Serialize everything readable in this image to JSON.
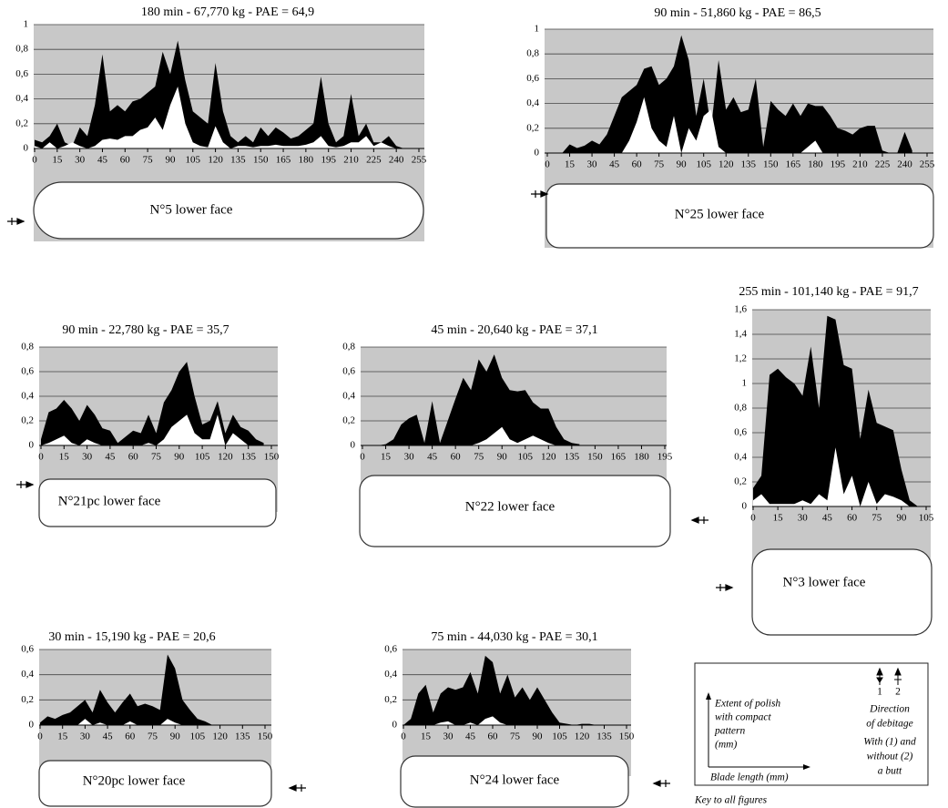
{
  "chart_data": [
    {
      "type": "area",
      "title": "180 min - 67,770 kg - PAE = 64,9",
      "blade_label": "N°5 lower face",
      "x": [
        0,
        5,
        10,
        15,
        20,
        25,
        30,
        35,
        40,
        45,
        50,
        55,
        60,
        65,
        70,
        75,
        80,
        85,
        90,
        95,
        100,
        105,
        110,
        115,
        120,
        125,
        130,
        135,
        140,
        145,
        150,
        155,
        160,
        165,
        170,
        175,
        180,
        185,
        190,
        195,
        200,
        205,
        210,
        215,
        220,
        225,
        230,
        235,
        240,
        245
      ],
      "series": [
        {
          "color": "#000000",
          "values": [
            0.07,
            0.05,
            0.1,
            0.2,
            0.05,
            0.02,
            0.17,
            0.1,
            0.35,
            0.76,
            0.3,
            0.35,
            0.3,
            0.38,
            0.4,
            0.45,
            0.5,
            0.78,
            0.6,
            0.87,
            0.55,
            0.3,
            0.25,
            0.2,
            0.69,
            0.3,
            0.1,
            0.05,
            0.1,
            0.05,
            0.17,
            0.1,
            0.17,
            0.13,
            0.08,
            0.1,
            0.15,
            0.2,
            0.58,
            0.2,
            0.05,
            0.1,
            0.44,
            0.1,
            0.2,
            0.05,
            0.05,
            0.1,
            0.02,
            0
          ]
        },
        {
          "color": "#ffffff",
          "values": [
            0.02,
            0,
            0.05,
            0,
            0.02,
            0.05,
            0.02,
            0,
            0.02,
            0.07,
            0.08,
            0.07,
            0.1,
            0.1,
            0.15,
            0.17,
            0.25,
            0.15,
            0.35,
            0.5,
            0.2,
            0.05,
            0.02,
            0.01,
            0.18,
            0.05,
            0,
            0.02,
            0.02,
            0.01,
            0.02,
            0.02,
            0.03,
            0.02,
            0.02,
            0.02,
            0.03,
            0.05,
            0.1,
            0.02,
            0.01,
            0.02,
            0.05,
            0.05,
            0.1,
            0.02,
            0.05,
            0.02,
            0,
            0
          ]
        }
      ],
      "xlim": [
        0,
        255
      ],
      "xticks": [
        0,
        15,
        30,
        45,
        60,
        75,
        90,
        105,
        120,
        135,
        150,
        165,
        180,
        195,
        210,
        225,
        240,
        255
      ],
      "ylim": [
        0,
        1
      ],
      "yticks": [
        0,
        {
          "value": 0.2,
          "label": "0,2"
        },
        {
          "value": 0.4,
          "label": "0,4"
        },
        {
          "value": 0.6,
          "label": "0,6"
        },
        {
          "value": 0.8,
          "label": "0,8"
        },
        1
      ],
      "grid": true
    },
    {
      "type": "area",
      "title": "90 min - 51,860 kg - PAE = 86,5",
      "blade_label": "N°25 lower face",
      "x": [
        0,
        5,
        10,
        15,
        20,
        25,
        30,
        35,
        40,
        45,
        50,
        55,
        60,
        65,
        70,
        75,
        80,
        85,
        90,
        95,
        100,
        105,
        110,
        115,
        120,
        125,
        130,
        135,
        140,
        145,
        150,
        155,
        160,
        165,
        170,
        175,
        180,
        185,
        190,
        195,
        200,
        205,
        210,
        215,
        220,
        225,
        230,
        235,
        240,
        245
      ],
      "series": [
        {
          "color": "#000000",
          "values": [
            0,
            0,
            0,
            0.07,
            0.04,
            0.06,
            0.1,
            0.07,
            0.15,
            0.3,
            0.45,
            0.5,
            0.55,
            0.68,
            0.7,
            0.55,
            0.6,
            0.7,
            0.95,
            0.75,
            0.3,
            0.6,
            0.2,
            0.75,
            0.35,
            0.45,
            0.33,
            0.35,
            0.6,
            0.05,
            0.42,
            0.35,
            0.3,
            0.4,
            0.3,
            0.4,
            0.38,
            0.38,
            0.3,
            0.2,
            0.18,
            0.15,
            0.2,
            0.22,
            0.22,
            0.02,
            0,
            0,
            0.17,
            0.02
          ]
        },
        {
          "color": "#ffffff",
          "values": [
            0,
            0,
            0,
            0,
            0,
            0,
            0,
            0,
            0,
            0,
            0,
            0.1,
            0.25,
            0.45,
            0.2,
            0.1,
            0.05,
            0.3,
            0,
            0.2,
            0.1,
            0.3,
            0.35,
            0.05,
            0,
            0,
            0,
            0,
            0,
            0,
            0,
            0,
            0,
            0,
            0,
            0.05,
            0.1,
            0,
            0,
            0,
            0,
            0,
            0,
            0,
            0,
            0,
            0,
            0,
            0,
            0
          ]
        }
      ],
      "xlim": [
        0,
        255
      ],
      "xticks": [
        0,
        15,
        30,
        45,
        60,
        75,
        90,
        105,
        120,
        135,
        150,
        165,
        180,
        195,
        210,
        225,
        240,
        255
      ],
      "ylim": [
        0,
        1
      ],
      "yticks": [
        0,
        {
          "value": 0.2,
          "label": "0,2"
        },
        {
          "value": 0.4,
          "label": "0,4"
        },
        {
          "value": 0.6,
          "label": "0,6"
        },
        {
          "value": 0.8,
          "label": "0,8"
        },
        1
      ],
      "grid": true
    },
    {
      "type": "area",
      "title": "90 min - 22,780 kg - PAE = 35,7",
      "blade_label": "N°21pc lower face",
      "x": [
        0,
        5,
        10,
        15,
        20,
        25,
        30,
        35,
        40,
        45,
        50,
        55,
        60,
        65,
        70,
        75,
        80,
        85,
        90,
        95,
        100,
        105,
        110,
        115,
        120,
        125,
        130,
        135,
        140,
        145
      ],
      "series": [
        {
          "color": "#000000",
          "values": [
            0.05,
            0.27,
            0.3,
            0.37,
            0.3,
            0.2,
            0.33,
            0.25,
            0.14,
            0.12,
            0.02,
            0.07,
            0.12,
            0.1,
            0.25,
            0.1,
            0.35,
            0.45,
            0.6,
            0.68,
            0.4,
            0.17,
            0.2,
            0.36,
            0.1,
            0.25,
            0.15,
            0.12,
            0.05,
            0.02
          ]
        },
        {
          "color": "#ffffff",
          "values": [
            0,
            0.02,
            0.05,
            0.08,
            0.02,
            0,
            0.05,
            0.02,
            0,
            0,
            0,
            0,
            0,
            0,
            0.02,
            0,
            0.05,
            0.15,
            0.2,
            0.25,
            0.1,
            0.05,
            0.05,
            0.25,
            0,
            0.1,
            0.05,
            0,
            0,
            0
          ]
        }
      ],
      "xlim": [
        0,
        150
      ],
      "xticks": [
        0,
        15,
        30,
        45,
        60,
        75,
        90,
        105,
        120,
        135,
        150
      ],
      "ylim": [
        0,
        0.8
      ],
      "yticks": [
        0,
        {
          "value": 0.2,
          "label": "0,2"
        },
        {
          "value": 0.4,
          "label": "0,4"
        },
        {
          "value": 0.6,
          "label": "0,6"
        },
        {
          "value": 0.8,
          "label": "0,8"
        }
      ],
      "grid": true
    },
    {
      "type": "area",
      "title": "45 min - 20,640 kg - PAE = 37,1",
      "blade_label": "N°22 lower face",
      "x": [
        0,
        5,
        10,
        15,
        20,
        25,
        30,
        35,
        40,
        45,
        50,
        55,
        60,
        65,
        70,
        75,
        80,
        85,
        90,
        95,
        100,
        105,
        110,
        115,
        120,
        125,
        130,
        135,
        140
      ],
      "series": [
        {
          "color": "#000000",
          "values": [
            0,
            0,
            0,
            0.01,
            0.05,
            0.17,
            0.22,
            0.25,
            0.02,
            0.36,
            0.02,
            0.2,
            0.38,
            0.55,
            0.45,
            0.7,
            0.6,
            0.74,
            0.55,
            0.45,
            0.44,
            0.45,
            0.35,
            0.3,
            0.3,
            0.15,
            0.05,
            0.02,
            0.01
          ]
        },
        {
          "color": "#ffffff",
          "values": [
            0,
            0,
            0,
            0,
            0,
            0,
            0,
            0,
            0,
            0,
            0,
            0,
            0,
            0,
            0,
            0.02,
            0.05,
            0.1,
            0.15,
            0.05,
            0.02,
            0.05,
            0.08,
            0.05,
            0.02,
            0,
            0,
            0,
            0
          ]
        }
      ],
      "xlim": [
        0,
        195
      ],
      "xticks": [
        0,
        15,
        30,
        45,
        60,
        75,
        90,
        105,
        120,
        135,
        150,
        165,
        180,
        195
      ],
      "ylim": [
        0,
        0.8
      ],
      "yticks": [
        0,
        {
          "value": 0.2,
          "label": "0,2"
        },
        {
          "value": 0.4,
          "label": "0,4"
        },
        {
          "value": 0.6,
          "label": "0,6"
        },
        {
          "value": 0.8,
          "label": "0,8"
        }
      ],
      "grid": true
    },
    {
      "type": "area",
      "title": "255 min - 101,140 kg - PAE = 91,7",
      "blade_label": "N°3 lower face",
      "x": [
        0,
        5,
        10,
        15,
        20,
        25,
        30,
        35,
        40,
        45,
        50,
        55,
        60,
        65,
        70,
        75,
        80,
        85,
        90,
        95,
        100
      ],
      "series": [
        {
          "color": "#000000",
          "values": [
            0.15,
            0.25,
            1.07,
            1.12,
            1.05,
            1.0,
            0.9,
            1.3,
            0.8,
            1.55,
            1.52,
            1.15,
            1.12,
            0.55,
            0.95,
            0.68,
            0.65,
            0.62,
            0.3,
            0.05,
            0
          ]
        },
        {
          "color": "#ffffff",
          "values": [
            0.05,
            0.1,
            0.02,
            0.02,
            0.02,
            0.02,
            0.05,
            0.02,
            0.1,
            0.05,
            0.48,
            0.1,
            0.25,
            0,
            0.2,
            0.02,
            0.1,
            0.08,
            0.05,
            0,
            0
          ]
        }
      ],
      "xlim": [
        0,
        105
      ],
      "xticks": [
        0,
        15,
        30,
        45,
        60,
        75,
        90,
        105
      ],
      "ylim": [
        0,
        1.6
      ],
      "yticks": [
        0,
        {
          "value": 0.2,
          "label": "0,2"
        },
        {
          "value": 0.4,
          "label": "0,4"
        },
        {
          "value": 0.6,
          "label": "0,6"
        },
        {
          "value": 0.8,
          "label": "0,8"
        },
        1,
        {
          "value": 1.2,
          "label": "1,2"
        },
        {
          "value": 1.4,
          "label": "1,4"
        },
        {
          "value": 1.6,
          "label": "1,6"
        }
      ],
      "grid": true
    },
    {
      "type": "area",
      "title": "30 min - 15,190 kg - PAE = 20,6",
      "blade_label": "N°20pc lower face",
      "x": [
        0,
        5,
        10,
        15,
        20,
        25,
        30,
        35,
        40,
        45,
        50,
        55,
        60,
        65,
        70,
        75,
        80,
        85,
        90,
        95,
        100,
        105,
        110,
        115
      ],
      "series": [
        {
          "color": "#000000",
          "values": [
            0.02,
            0.07,
            0.05,
            0.08,
            0.1,
            0.15,
            0.2,
            0.1,
            0.28,
            0.18,
            0.1,
            0.18,
            0.25,
            0.15,
            0.17,
            0.15,
            0.12,
            0.56,
            0.45,
            0.2,
            0.12,
            0.05,
            0.03,
            0
          ]
        },
        {
          "color": "#ffffff",
          "values": [
            0,
            0,
            0,
            0,
            0,
            0,
            0.05,
            0,
            0.02,
            0,
            0,
            0,
            0.03,
            0,
            0,
            0,
            0,
            0.05,
            0.02,
            0,
            0,
            0,
            0,
            0
          ]
        }
      ],
      "xlim": [
        0,
        150
      ],
      "xticks": [
        0,
        15,
        30,
        45,
        60,
        75,
        90,
        105,
        120,
        135,
        150
      ],
      "ylim": [
        0,
        0.6
      ],
      "yticks": [
        0,
        {
          "value": 0.2,
          "label": "0,2"
        },
        {
          "value": 0.4,
          "label": "0,4"
        },
        {
          "value": 0.6,
          "label": "0,6"
        }
      ],
      "grid": true
    },
    {
      "type": "area",
      "title": "75 min - 44,030 kg - PAE = 30,1",
      "blade_label": "N°24 lower face",
      "x": [
        0,
        5,
        10,
        15,
        20,
        25,
        30,
        35,
        40,
        45,
        50,
        55,
        60,
        65,
        70,
        75,
        80,
        85,
        90,
        95,
        100,
        105,
        110,
        115,
        120,
        125,
        130
      ],
      "series": [
        {
          "color": "#000000",
          "values": [
            0,
            0.05,
            0.25,
            0.32,
            0.1,
            0.25,
            0.3,
            0.28,
            0.3,
            0.42,
            0.25,
            0.55,
            0.5,
            0.25,
            0.4,
            0.22,
            0.3,
            0.2,
            0.3,
            0.2,
            0.1,
            0.02,
            0.01,
            0,
            0.01,
            0.01,
            0
          ]
        },
        {
          "color": "#ffffff",
          "values": [
            0,
            0,
            0,
            0,
            0,
            0.02,
            0.03,
            0,
            0,
            0.02,
            0,
            0.05,
            0.07,
            0.02,
            0,
            0,
            0,
            0,
            0,
            0,
            0,
            0,
            0,
            0,
            0,
            0,
            0
          ]
        }
      ],
      "xlim": [
        0,
        150
      ],
      "xticks": [
        0,
        15,
        30,
        45,
        60,
        75,
        90,
        105,
        120,
        135,
        150
      ],
      "ylim": [
        0,
        0.6
      ],
      "yticks": [
        0,
        {
          "value": 0.2,
          "label": "0,2"
        },
        {
          "value": 0.4,
          "label": "0,4"
        },
        {
          "value": 0.6,
          "label": "0,6"
        }
      ],
      "grid": true
    }
  ],
  "key": {
    "y_label": [
      "Extent of polish",
      "with compact",
      "pattern",
      "(mm)"
    ],
    "x_label": "Blade length (mm)",
    "markers": [
      "1",
      "2"
    ],
    "direction": [
      "Direction",
      "of debitage",
      "With (1) and",
      "without (2)",
      "a butt"
    ],
    "caption": "Key to all figures"
  }
}
